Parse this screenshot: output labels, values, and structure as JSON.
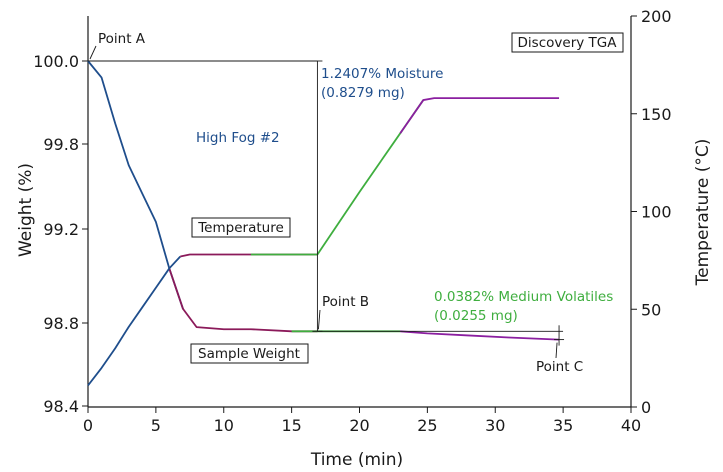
{
  "chart_data": {
    "type": "line",
    "title": "",
    "x_axis": {
      "label": "Time (min)",
      "range": [
        0,
        40
      ],
      "ticks": [
        0,
        5,
        10,
        15,
        20,
        25,
        30,
        35,
        40
      ]
    },
    "y_left_axis": {
      "label": "Weight (%)",
      "tick_values": [
        100.0,
        99.8,
        99.2,
        98.8,
        98.4
      ],
      "tick_labels": [
        "100.0",
        "99.8",
        "99.2",
        "98.8",
        "98.4"
      ],
      "note": "non-uniformly labeled axis as printed"
    },
    "y_right_axis": {
      "label": "Temperature (°C)",
      "range": [
        0,
        200
      ],
      "ticks": [
        0,
        50,
        100,
        150,
        200
      ]
    },
    "series": [
      {
        "name": "Sample Weight",
        "axis": "left",
        "colors": [
          "#1f4e8c",
          "#8b1a5a",
          "#3fae3f",
          "#8b1fa0"
        ],
        "points": [
          [
            0,
            100.0
          ],
          [
            1,
            99.96
          ],
          [
            2,
            99.85
          ],
          [
            3,
            99.65
          ],
          [
            4,
            99.45
          ],
          [
            5,
            99.25
          ],
          [
            6,
            99.03
          ],
          [
            7,
            98.86
          ],
          [
            8,
            98.78
          ],
          [
            10,
            98.77
          ],
          [
            12,
            98.77
          ],
          [
            15,
            98.76
          ],
          [
            16.9,
            98.76
          ],
          [
            20,
            98.76
          ],
          [
            23,
            98.76
          ],
          [
            25,
            98.75
          ],
          [
            28,
            98.74
          ],
          [
            31,
            98.73
          ],
          [
            34.7,
            98.72
          ]
        ]
      },
      {
        "name": "Temperature",
        "axis": "right",
        "colors": [
          "#1f4e8c",
          "#8b1a5a",
          "#3fae3f",
          "#8b1fa0"
        ],
        "points": [
          [
            0,
            11
          ],
          [
            1,
            20
          ],
          [
            2,
            30
          ],
          [
            3,
            41
          ],
          [
            4,
            51
          ],
          [
            5,
            61
          ],
          [
            6,
            71
          ],
          [
            6.8,
            77
          ],
          [
            7.5,
            78
          ],
          [
            10,
            78
          ],
          [
            12,
            78
          ],
          [
            16.9,
            78
          ],
          [
            20,
            110
          ],
          [
            23,
            140
          ],
          [
            24.7,
            157
          ],
          [
            25.5,
            158
          ],
          [
            30,
            158
          ],
          [
            34.7,
            158
          ]
        ]
      }
    ],
    "annotations": {
      "point_a": "Point A",
      "point_b": "Point B",
      "point_c": "Point C",
      "moisture_line1": "1.2407% Moisture",
      "moisture_line2": "(0.8279 mg)",
      "volatiles_line1": "0.0382% Medium Volatiles",
      "volatiles_line2": "(0.0255 mg)",
      "sample_name": "High Fog #2",
      "instrument": "Discovery TGA",
      "temperature_label": "Temperature",
      "weight_label": "Sample Weight"
    },
    "grid": false,
    "legend": "none"
  }
}
